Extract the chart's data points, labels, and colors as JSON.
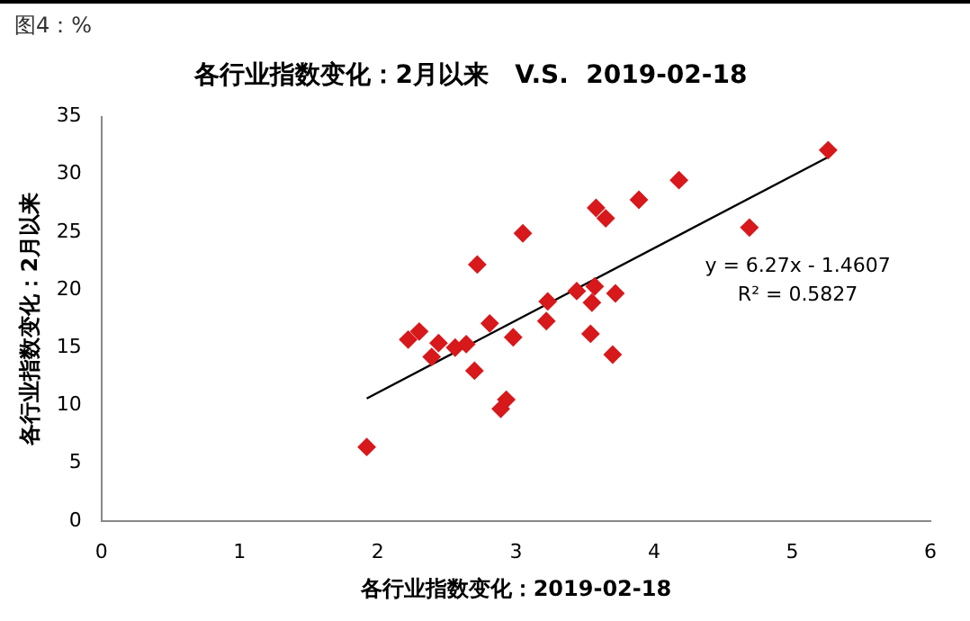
{
  "chart_data": {
    "type": "scatter",
    "title": "各行业指数变化：2月以来   V.S.  2019-02-18",
    "xlabel": "各行业指数变化：2019-02-18",
    "ylabel": "各行业指数变化：2月以来",
    "xlim": [
      0,
      6
    ],
    "xticks": [
      0,
      1,
      2,
      3,
      4,
      5,
      6
    ],
    "ylim": [
      0,
      35
    ],
    "yticks": [
      0,
      5,
      10,
      15,
      20,
      25,
      30,
      35
    ],
    "grid": false,
    "legend": false,
    "marker": "diamond",
    "annotations": [
      "图4：%",
      "y = 6.27x - 1.4607",
      "R² = 0.5827"
    ],
    "series": [
      {
        "color": "#d7191c",
        "x": [
          1.92,
          2.22,
          2.3,
          2.39,
          2.44,
          2.56,
          2.64,
          2.7,
          2.72,
          2.81,
          2.89,
          2.93,
          2.98,
          3.05,
          3.22,
          3.23,
          3.44,
          3.54,
          3.55,
          3.57,
          3.58,
          3.65,
          3.7,
          3.72,
          3.89,
          4.18,
          4.69,
          5.26
        ],
        "values": [
          6.4,
          15.7,
          16.4,
          14.2,
          15.4,
          15.0,
          15.3,
          13.0,
          22.2,
          17.1,
          9.7,
          10.5,
          15.9,
          24.9,
          17.3,
          19.0,
          19.9,
          16.2,
          18.9,
          20.3,
          27.1,
          26.2,
          14.4,
          19.7,
          27.8,
          29.5,
          25.4,
          32.1
        ]
      },
      {
        "type": "line",
        "color": "#000000",
        "marker": "none",
        "x": [
          1.92,
          5.26
        ],
        "values": [
          10.6,
          31.5
        ]
      }
    ]
  }
}
